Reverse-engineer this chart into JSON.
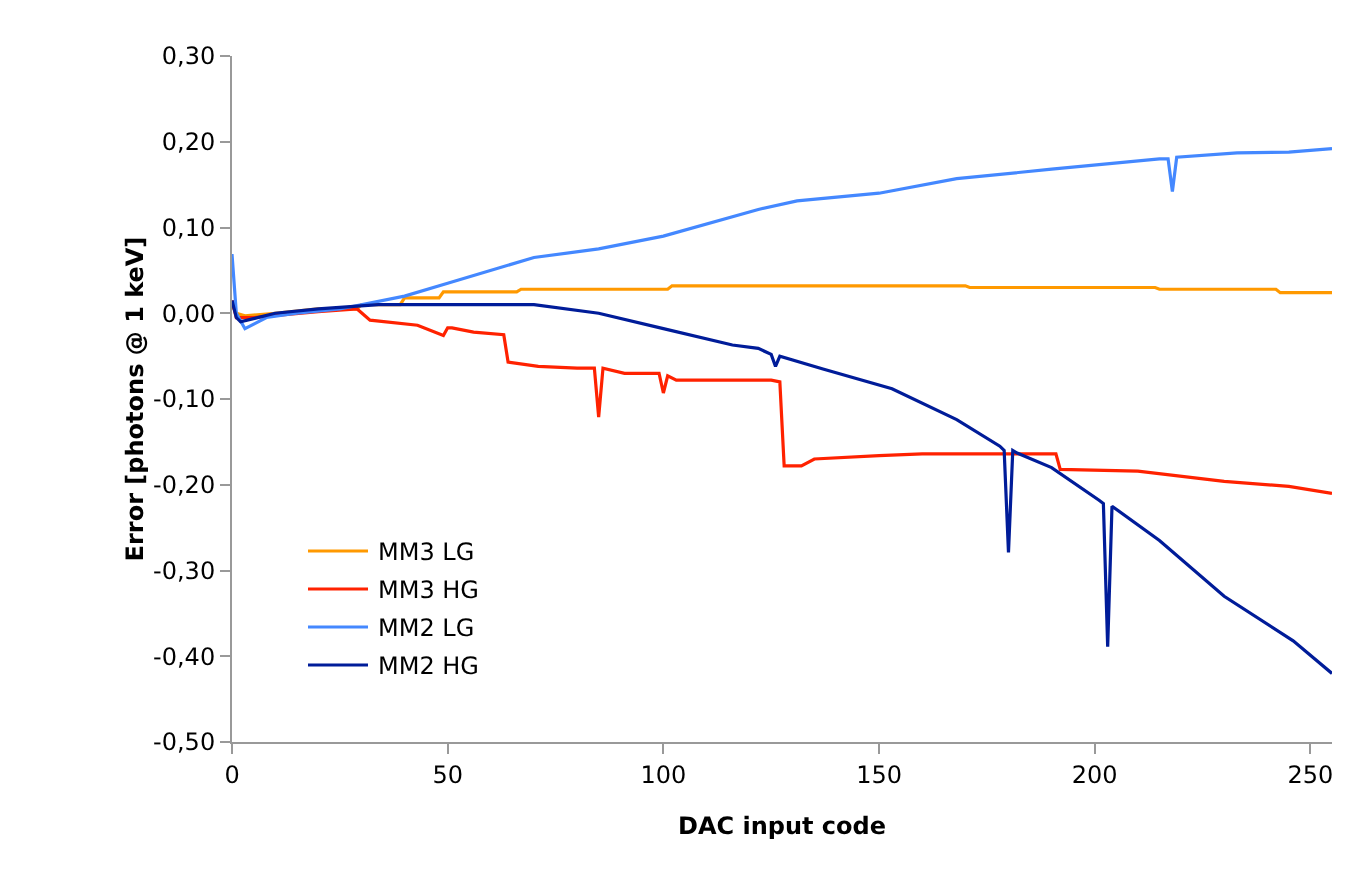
{
  "chart_data": {
    "type": "line",
    "xlabel": "DAC input code",
    "ylabel": "Error [photons @ 1 keV]",
    "xlim": [
      0,
      255
    ],
    "xticks": [
      0,
      50,
      100,
      150,
      200,
      250
    ],
    "ylim": [
      -0.5,
      0.3
    ],
    "yticks": [
      {
        "value": -0.5,
        "label": "-0,50"
      },
      {
        "value": -0.4,
        "label": "-0,40"
      },
      {
        "value": -0.3,
        "label": "-0,30"
      },
      {
        "value": -0.2,
        "label": "-0,20"
      },
      {
        "value": -0.1,
        "label": "-0,10"
      },
      {
        "value": 0,
        "label": "0,00"
      },
      {
        "value": 0.1,
        "label": "0,10"
      },
      {
        "value": 0.2,
        "label": "0,20"
      },
      {
        "value": 0.3,
        "label": "0,30"
      }
    ],
    "grid": false,
    "legend": "bottom left",
    "marker": "none",
    "line_style": "solid",
    "series": [
      {
        "name": "MM3 LG",
        "color": "#ff9900",
        "x": [
          0,
          1,
          3,
          10,
          20,
          29,
          30,
          39,
          40,
          48,
          49,
          66,
          67,
          101,
          102,
          170,
          171,
          214,
          215,
          242,
          243,
          255
        ],
        "values": [
          0.01,
          0.0,
          -0.003,
          0.0,
          0.005,
          0.005,
          0.01,
          0.01,
          0.018,
          0.018,
          0.025,
          0.025,
          0.028,
          0.028,
          0.032,
          0.032,
          0.03,
          0.03,
          0.028,
          0.028,
          0.024,
          0.024
        ]
      },
      {
        "name": "MM3 HG",
        "color": "#ff2200",
        "x": [
          0,
          1,
          5,
          20,
          29,
          32,
          43,
          49,
          50,
          51,
          56,
          63,
          64,
          71,
          80,
          84,
          85,
          86,
          91,
          99,
          100,
          101,
          103,
          125,
          127,
          128,
          132,
          135,
          150,
          160,
          175,
          191,
          192,
          210,
          230,
          245,
          255
        ],
        "values": [
          0.015,
          -0.005,
          -0.005,
          0.002,
          0.005,
          -0.008,
          -0.014,
          -0.026,
          -0.017,
          -0.017,
          -0.022,
          -0.025,
          -0.057,
          -0.062,
          -0.064,
          -0.064,
          -0.121,
          -0.064,
          -0.07,
          -0.07,
          -0.093,
          -0.073,
          -0.078,
          -0.078,
          -0.08,
          -0.178,
          -0.178,
          -0.17,
          -0.166,
          -0.164,
          -0.164,
          -0.164,
          -0.182,
          -0.184,
          -0.196,
          -0.202,
          -0.21
        ]
      },
      {
        "name": "MM2 LG",
        "color": "#4488ff",
        "x": [
          0,
          1,
          3,
          8,
          15,
          25,
          40,
          50,
          70,
          85,
          100,
          122,
          131,
          150,
          168,
          190,
          215,
          217,
          218,
          219,
          233,
          245,
          255
        ],
        "values": [
          0.069,
          0.0,
          -0.018,
          -0.005,
          0.0,
          0.005,
          0.02,
          0.035,
          0.065,
          0.075,
          0.09,
          0.121,
          0.131,
          0.14,
          0.157,
          0.168,
          0.18,
          0.18,
          0.142,
          0.182,
          0.187,
          0.188,
          0.192
        ]
      },
      {
        "name": "MM2 HG",
        "color": "#001c99",
        "x": [
          0,
          1,
          2,
          10,
          20,
          34,
          70,
          85,
          100,
          116,
          122,
          125,
          126,
          127,
          137,
          153,
          168,
          178,
          179,
          180,
          181,
          182,
          190,
          201,
          202,
          203,
          204,
          215,
          230,
          246,
          255
        ],
        "values": [
          0.015,
          -0.005,
          -0.01,
          0.0,
          0.005,
          0.01,
          0.01,
          0.0,
          -0.018,
          -0.037,
          -0.041,
          -0.048,
          -0.062,
          -0.05,
          -0.065,
          -0.088,
          -0.124,
          -0.155,
          -0.16,
          -0.279,
          -0.16,
          -0.163,
          -0.18,
          -0.218,
          -0.222,
          -0.389,
          -0.225,
          -0.265,
          -0.33,
          -0.382,
          -0.42
        ]
      }
    ]
  }
}
